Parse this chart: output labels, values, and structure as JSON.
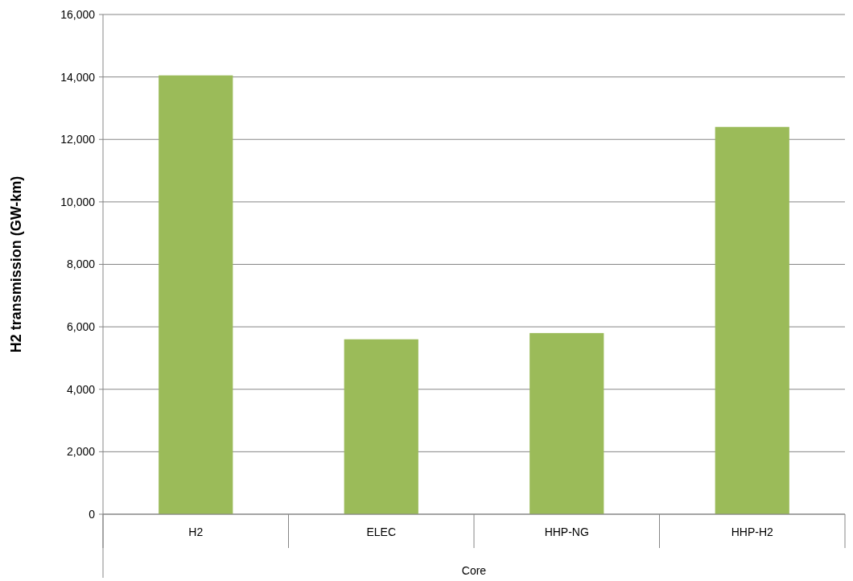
{
  "chart_data": {
    "type": "bar",
    "ylabel": "H2 transmission (GW-km)",
    "xlabel": "Core",
    "categories": [
      "H2",
      "ELEC",
      "HHP-NG",
      "HHP-H2"
    ],
    "values": [
      14050,
      5600,
      5800,
      12400
    ],
    "color": "#9bbb59",
    "ylim": [
      0,
      16000
    ],
    "yticks": [
      {
        "value": 0,
        "label": "0"
      },
      {
        "value": 2000,
        "label": "2,000"
      },
      {
        "value": 4000,
        "label": "4,000"
      },
      {
        "value": 6000,
        "label": "6,000"
      },
      {
        "value": 8000,
        "label": "8,000"
      },
      {
        "value": 10000,
        "label": "10,000"
      },
      {
        "value": 12000,
        "label": "12,000"
      },
      {
        "value": 14000,
        "label": "14,000"
      },
      {
        "value": 16000,
        "label": "16,000"
      }
    ],
    "grid": "y"
  }
}
